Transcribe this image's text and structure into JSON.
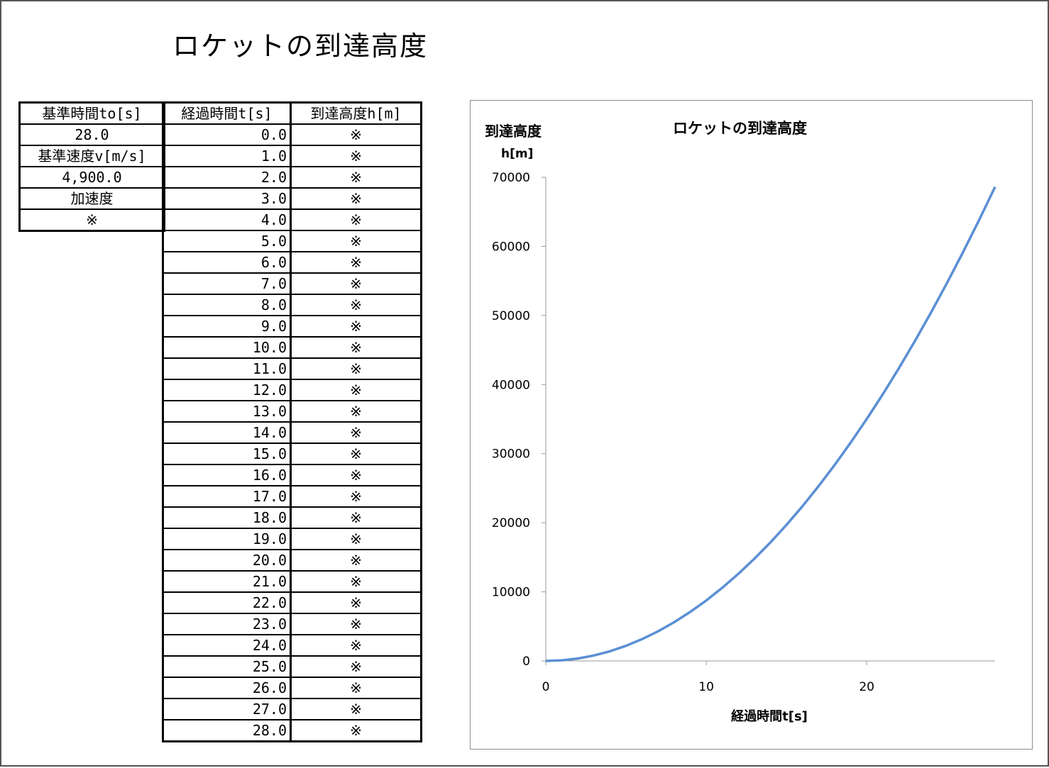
{
  "page": {
    "title": "ロケットの到達高度"
  },
  "left_table": {
    "rows": [
      "基準時間to[s]",
      "28.0",
      "基準速度v[m/s]",
      "4,900.0",
      "加速度",
      "※"
    ]
  },
  "main_table": {
    "headers": [
      "経過時間t[s]",
      "到達高度h[m]"
    ],
    "rows": [
      [
        "0.0",
        "※"
      ],
      [
        "1.0",
        "※"
      ],
      [
        "2.0",
        "※"
      ],
      [
        "3.0",
        "※"
      ],
      [
        "4.0",
        "※"
      ],
      [
        "5.0",
        "※"
      ],
      [
        "6.0",
        "※"
      ],
      [
        "7.0",
        "※"
      ],
      [
        "8.0",
        "※"
      ],
      [
        "9.0",
        "※"
      ],
      [
        "10.0",
        "※"
      ],
      [
        "11.0",
        "※"
      ],
      [
        "12.0",
        "※"
      ],
      [
        "13.0",
        "※"
      ],
      [
        "14.0",
        "※"
      ],
      [
        "15.0",
        "※"
      ],
      [
        "16.0",
        "※"
      ],
      [
        "17.0",
        "※"
      ],
      [
        "18.0",
        "※"
      ],
      [
        "19.0",
        "※"
      ],
      [
        "20.0",
        "※"
      ],
      [
        "21.0",
        "※"
      ],
      [
        "22.0",
        "※"
      ],
      [
        "23.0",
        "※"
      ],
      [
        "24.0",
        "※"
      ],
      [
        "25.0",
        "※"
      ],
      [
        "26.0",
        "※"
      ],
      [
        "27.0",
        "※"
      ],
      [
        "28.0",
        "※"
      ]
    ]
  },
  "chart_data": {
    "type": "line",
    "title": "ロケットの到達高度",
    "ylabel_line1": "到達高度",
    "ylabel_line2": "h[m]",
    "xlabel": "経過時間t[s]",
    "xlim": [
      0,
      28
    ],
    "ylim": [
      0,
      70000
    ],
    "xticks": [
      "0",
      "10",
      "20"
    ],
    "xtick_values": [
      0,
      10,
      20
    ],
    "yticks": [
      "0",
      "10000",
      "20000",
      "30000",
      "40000",
      "50000",
      "60000",
      "70000"
    ],
    "ytick_values": [
      0,
      10000,
      20000,
      30000,
      40000,
      50000,
      60000,
      70000
    ],
    "grid": false,
    "legend": "none",
    "series": [
      {
        "color": "#5b8fd4",
        "x": [
          0,
          1,
          2,
          3,
          4,
          5,
          6,
          7,
          8,
          9,
          10,
          11,
          12,
          13,
          14,
          15,
          16,
          17,
          18,
          19,
          20,
          21,
          22,
          23,
          24,
          25,
          26,
          27,
          28
        ],
        "y": [
          0,
          88,
          350,
          788,
          1400,
          2188,
          3150,
          4288,
          5600,
          7088,
          8750,
          10588,
          12600,
          14788,
          17150,
          19688,
          22400,
          25288,
          28350,
          31588,
          35000,
          38588,
          42350,
          46288,
          50400,
          54688,
          59150,
          63788,
          68600
        ]
      }
    ]
  }
}
